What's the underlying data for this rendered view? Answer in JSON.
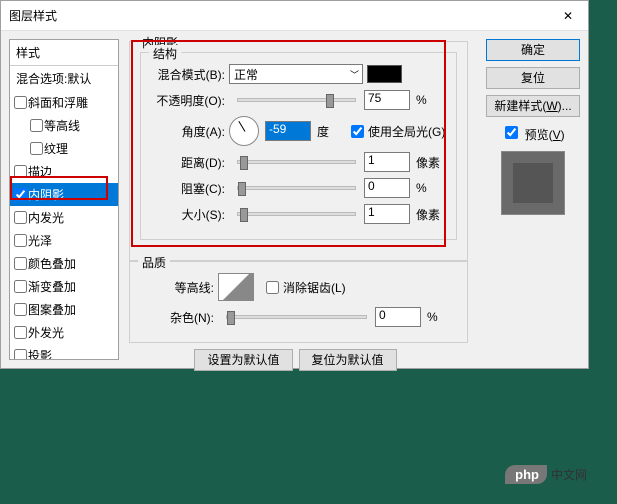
{
  "dialog": {
    "title": "图层样式"
  },
  "sidebar": {
    "header": "样式",
    "blend": "混合选项:默认",
    "items": [
      {
        "label": "斜面和浮雕",
        "checked": false,
        "indent": false
      },
      {
        "label": "等高线",
        "checked": false,
        "indent": true
      },
      {
        "label": "纹理",
        "checked": false,
        "indent": true
      },
      {
        "label": "描边",
        "checked": false,
        "indent": false
      },
      {
        "label": "内阴影",
        "checked": true,
        "indent": false,
        "selected": true
      },
      {
        "label": "内发光",
        "checked": false,
        "indent": false
      },
      {
        "label": "光泽",
        "checked": false,
        "indent": false
      },
      {
        "label": "颜色叠加",
        "checked": false,
        "indent": false
      },
      {
        "label": "渐变叠加",
        "checked": false,
        "indent": false
      },
      {
        "label": "图案叠加",
        "checked": false,
        "indent": false
      },
      {
        "label": "外发光",
        "checked": false,
        "indent": false
      },
      {
        "label": "投影",
        "checked": false,
        "indent": false
      }
    ]
  },
  "panel": {
    "section_title": "内阴影",
    "structure_title": "结构",
    "quality_title": "品质",
    "blend_mode_label": "混合模式(B):",
    "blend_mode_value": "正常",
    "opacity_label": "不透明度(O):",
    "opacity_value": "75",
    "opacity_unit": "%",
    "angle_label": "角度(A):",
    "angle_value": "-59",
    "angle_unit": "度",
    "global_light_label": "使用全局光(G)",
    "distance_label": "距离(D):",
    "distance_value": "1",
    "distance_unit": "像素",
    "choke_label": "阻塞(C):",
    "choke_value": "0",
    "choke_unit": "%",
    "size_label": "大小(S):",
    "size_value": "1",
    "size_unit": "像素",
    "contour_label": "等高线:",
    "antialias_label": "消除锯齿(L)",
    "noise_label": "杂色(N):",
    "noise_value": "0",
    "noise_unit": "%",
    "set_default": "设置为默认值",
    "reset_default": "复位为默认值"
  },
  "buttons": {
    "ok": "确定",
    "cancel": "复位",
    "new_style": "新建样式(W)...",
    "preview": "预览(V)"
  },
  "watermark": {
    "php": "php",
    "text": "中文网"
  },
  "colors": {
    "highlight": "#cc0000",
    "select_bg": "#0078d7",
    "swatch": "#000000"
  }
}
